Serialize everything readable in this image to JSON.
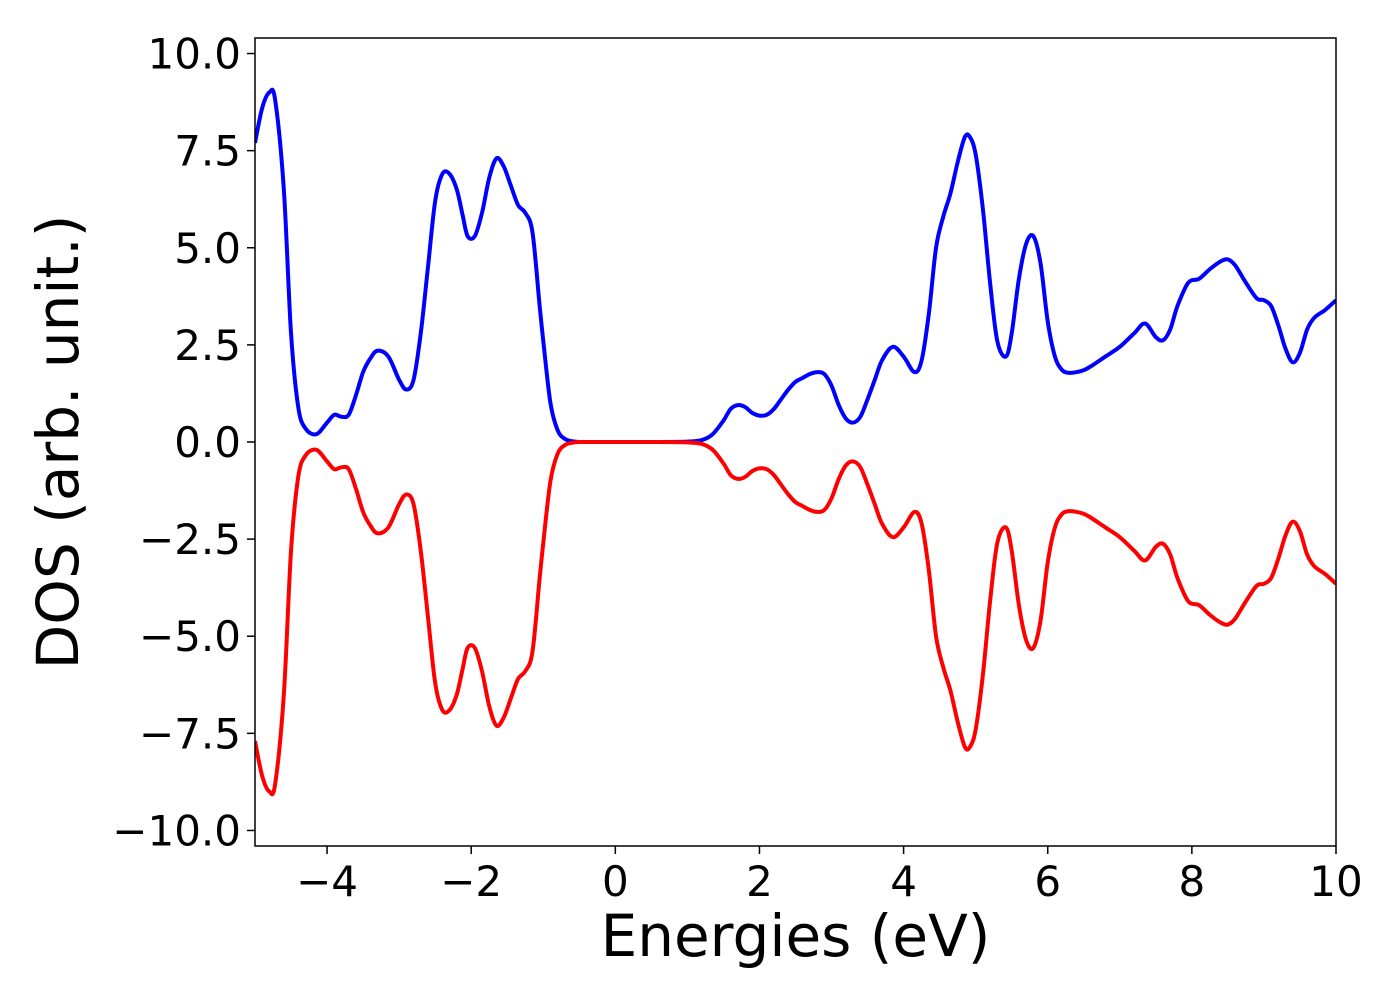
{
  "chart_data": {
    "type": "line",
    "title": "",
    "xlabel": "Energies (eV)",
    "ylabel": "DOS (arb. unit.)",
    "xlim": [
      -5,
      10
    ],
    "ylim": [
      -10.4,
      10.4
    ],
    "grid": false,
    "legend": "none",
    "xticks": [
      -4,
      -2,
      0,
      2,
      4,
      6,
      8,
      10
    ],
    "xtick_labels": [
      "−4",
      "−2",
      "0",
      "2",
      "4",
      "6",
      "8",
      "10"
    ],
    "yticks": [
      10,
      7.5,
      5,
      2.5,
      0,
      -2.5,
      -5,
      -7.5,
      -10
    ],
    "ytick_labels": [
      "10.0",
      "7.5",
      "5.0",
      "2.5",
      "0.0",
      "−2.5",
      "−5.0",
      "−7.5",
      "−10.0"
    ],
    "series": [
      {
        "color": "#0000ff",
        "x": [
          -5.0,
          -4.9,
          -4.8,
          -4.72,
          -4.6,
          -4.5,
          -4.4,
          -4.3,
          -4.15,
          -4.0,
          -3.9,
          -3.8,
          -3.7,
          -3.6,
          -3.5,
          -3.4,
          -3.3,
          -3.15,
          -3.0,
          -2.9,
          -2.8,
          -2.7,
          -2.6,
          -2.5,
          -2.4,
          -2.3,
          -2.2,
          -2.12,
          -2.05,
          -1.95,
          -1.85,
          -1.75,
          -1.65,
          -1.55,
          -1.45,
          -1.35,
          -1.25,
          -1.15,
          -1.05,
          -1.0,
          -0.9,
          -0.8,
          -0.7,
          -0.6,
          -0.5,
          -0.4,
          0.0,
          0.5,
          1.0,
          1.2,
          1.35,
          1.5,
          1.6,
          1.7,
          1.8,
          1.9,
          2.0,
          2.1,
          2.2,
          2.3,
          2.4,
          2.5,
          2.6,
          2.7,
          2.8,
          2.9,
          3.0,
          3.1,
          3.2,
          3.3,
          3.4,
          3.5,
          3.6,
          3.7,
          3.85,
          4.0,
          4.15,
          4.25,
          4.35,
          4.45,
          4.55,
          4.65,
          4.75,
          4.85,
          4.92,
          5.0,
          5.1,
          5.2,
          5.3,
          5.42,
          5.5,
          5.6,
          5.7,
          5.8,
          5.9,
          6.0,
          6.1,
          6.2,
          6.3,
          6.4,
          6.5,
          6.6,
          6.8,
          7.0,
          7.2,
          7.35,
          7.5,
          7.6,
          7.7,
          7.8,
          7.95,
          8.1,
          8.25,
          8.4,
          8.5,
          8.6,
          8.75,
          8.9,
          9.0,
          9.1,
          9.2,
          9.3,
          9.4,
          9.5,
          9.6,
          9.7,
          9.85,
          10.0
        ],
        "y": [
          7.7,
          8.6,
          9.0,
          8.8,
          6.5,
          2.8,
          0.9,
          0.35,
          0.2,
          0.5,
          0.7,
          0.65,
          0.7,
          1.2,
          1.8,
          2.15,
          2.35,
          2.2,
          1.6,
          1.35,
          1.6,
          2.8,
          4.5,
          6.2,
          6.9,
          6.9,
          6.5,
          5.85,
          5.3,
          5.3,
          5.9,
          6.8,
          7.3,
          7.1,
          6.6,
          6.1,
          5.9,
          5.4,
          3.5,
          2.6,
          1.0,
          0.3,
          0.08,
          0.02,
          0.0,
          0.0,
          0.0,
          0.0,
          0.01,
          0.05,
          0.2,
          0.55,
          0.85,
          0.95,
          0.9,
          0.75,
          0.68,
          0.7,
          0.85,
          1.1,
          1.35,
          1.55,
          1.65,
          1.75,
          1.8,
          1.75,
          1.45,
          0.95,
          0.6,
          0.5,
          0.65,
          1.1,
          1.6,
          2.1,
          2.45,
          2.2,
          1.8,
          2.1,
          3.3,
          5.0,
          5.8,
          6.4,
          7.2,
          7.85,
          7.85,
          7.4,
          6.0,
          4.1,
          2.6,
          2.2,
          2.8,
          4.2,
          5.1,
          5.3,
          4.6,
          3.1,
          2.2,
          1.85,
          1.78,
          1.8,
          1.85,
          1.95,
          2.2,
          2.45,
          2.8,
          3.05,
          2.7,
          2.62,
          2.9,
          3.5,
          4.1,
          4.2,
          4.45,
          4.65,
          4.7,
          4.55,
          4.1,
          3.7,
          3.65,
          3.5,
          3.0,
          2.4,
          2.05,
          2.3,
          2.9,
          3.2,
          3.4,
          3.65
        ]
      },
      {
        "color": "#ff0000",
        "x": [
          -5.0,
          -4.9,
          -4.8,
          -4.72,
          -4.6,
          -4.5,
          -4.4,
          -4.3,
          -4.15,
          -4.0,
          -3.9,
          -3.8,
          -3.7,
          -3.6,
          -3.5,
          -3.4,
          -3.3,
          -3.15,
          -3.0,
          -2.9,
          -2.8,
          -2.7,
          -2.6,
          -2.5,
          -2.4,
          -2.3,
          -2.2,
          -2.12,
          -2.05,
          -1.95,
          -1.85,
          -1.75,
          -1.65,
          -1.55,
          -1.45,
          -1.35,
          -1.25,
          -1.15,
          -1.05,
          -1.0,
          -0.9,
          -0.8,
          -0.7,
          -0.6,
          -0.5,
          -0.4,
          0.0,
          0.5,
          1.0,
          1.2,
          1.35,
          1.5,
          1.6,
          1.7,
          1.8,
          1.9,
          2.0,
          2.1,
          2.2,
          2.3,
          2.4,
          2.5,
          2.6,
          2.7,
          2.8,
          2.9,
          3.0,
          3.1,
          3.2,
          3.3,
          3.4,
          3.5,
          3.6,
          3.7,
          3.85,
          4.0,
          4.15,
          4.25,
          4.35,
          4.45,
          4.55,
          4.65,
          4.75,
          4.85,
          4.92,
          5.0,
          5.1,
          5.2,
          5.3,
          5.42,
          5.5,
          5.6,
          5.7,
          5.8,
          5.9,
          6.0,
          6.1,
          6.2,
          6.3,
          6.4,
          6.5,
          6.6,
          6.8,
          7.0,
          7.2,
          7.35,
          7.5,
          7.6,
          7.7,
          7.8,
          7.95,
          8.1,
          8.25,
          8.4,
          8.5,
          8.6,
          8.75,
          8.9,
          9.0,
          9.1,
          9.2,
          9.3,
          9.4,
          9.5,
          9.6,
          9.7,
          9.85,
          10.0
        ],
        "y": [
          -7.7,
          -8.6,
          -9.0,
          -8.8,
          -6.5,
          -2.8,
          -0.9,
          -0.35,
          -0.2,
          -0.5,
          -0.7,
          -0.65,
          -0.7,
          -1.2,
          -1.8,
          -2.15,
          -2.35,
          -2.2,
          -1.6,
          -1.35,
          -1.6,
          -2.8,
          -4.5,
          -6.2,
          -6.9,
          -6.9,
          -6.5,
          -5.85,
          -5.3,
          -5.3,
          -5.9,
          -6.8,
          -7.3,
          -7.1,
          -6.6,
          -6.1,
          -5.9,
          -5.4,
          -3.5,
          -2.6,
          -1.0,
          -0.3,
          -0.08,
          -0.02,
          0.0,
          0.0,
          0.0,
          0.0,
          -0.01,
          -0.05,
          -0.2,
          -0.55,
          -0.85,
          -0.95,
          -0.9,
          -0.75,
          -0.68,
          -0.7,
          -0.85,
          -1.1,
          -1.35,
          -1.55,
          -1.65,
          -1.75,
          -1.8,
          -1.75,
          -1.45,
          -0.95,
          -0.6,
          -0.5,
          -0.65,
          -1.1,
          -1.6,
          -2.1,
          -2.45,
          -2.2,
          -1.8,
          -2.1,
          -3.3,
          -5.0,
          -5.8,
          -6.4,
          -7.2,
          -7.85,
          -7.85,
          -7.4,
          -6.0,
          -4.1,
          -2.6,
          -2.2,
          -2.8,
          -4.2,
          -5.1,
          -5.3,
          -4.6,
          -3.1,
          -2.2,
          -1.85,
          -1.78,
          -1.8,
          -1.85,
          -1.95,
          -2.2,
          -2.45,
          -2.8,
          -3.05,
          -2.7,
          -2.62,
          -2.9,
          -3.5,
          -4.1,
          -4.2,
          -4.45,
          -4.65,
          -4.7,
          -4.55,
          -4.1,
          -3.7,
          -3.65,
          -3.5,
          -3.0,
          -2.4,
          -2.05,
          -2.3,
          -2.9,
          -3.2,
          -3.4,
          -3.65
        ]
      }
    ]
  }
}
